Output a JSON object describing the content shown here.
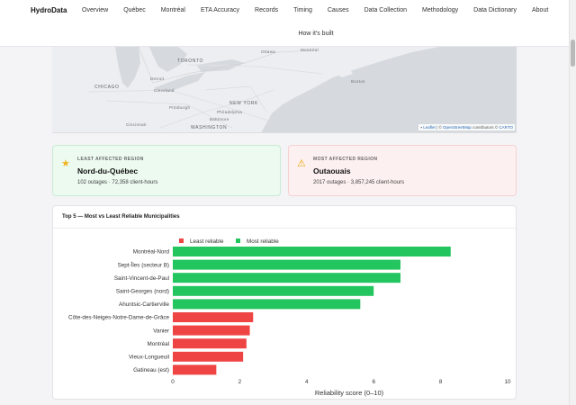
{
  "nav": {
    "brand": "HydroData",
    "items": [
      "Overview",
      "Québec",
      "Montréal",
      "ETA Accuracy",
      "Records",
      "Timing",
      "Causes",
      "Data Collection",
      "Methodology",
      "Data Dictionary",
      "About",
      "How it's built"
    ]
  },
  "map": {
    "cities": [
      "TORONTO",
      "Ottawa",
      "Montréal",
      "Detroit",
      "Boston",
      "Cleveland",
      "CHICAGO",
      "NEW YORK",
      "Pittsburgh",
      "Philadelphia",
      "WASHINGTON",
      "Cincinnati",
      "Baltimore"
    ],
    "attribution": {
      "leaflet": "Leaflet",
      "sep": " | © ",
      "osm": "OpenStreetMap",
      "contrib": " contributors © ",
      "carto": "CARTO"
    }
  },
  "least": {
    "tag": "LEAST AFFECTED REGION",
    "region": "Nord-du-Québec",
    "meta": "102 outages · 72,358 client-hours",
    "icon": "star-icon"
  },
  "most": {
    "tag": "MOST AFFECTED REGION",
    "region": "Outaouais",
    "meta": "2017 outages · 3,857,245 client-hours",
    "icon": "warning-icon"
  },
  "chart": {
    "title": "Top 5 — Most vs Least Reliable Municipalities"
  },
  "chart_data": {
    "type": "bar",
    "orientation": "horizontal",
    "categories": [
      "Montréal-Nord",
      "Sept-Îles (secteur B)",
      "Saint-Vincent-de-Paul",
      "Saint-Georges (nord)",
      "Ahuntsic-Cartierville",
      "Côte-des-Neiges-Notre-Dame-de-Grâce",
      "Vanier",
      "Montréal",
      "Vieux-Longueuil",
      "Gatineau (est)"
    ],
    "values": [
      8.3,
      6.8,
      6.8,
      6.0,
      5.6,
      2.4,
      2.3,
      2.2,
      2.1,
      1.3
    ],
    "groups": [
      "Most reliable",
      "Most reliable",
      "Most reliable",
      "Most reliable",
      "Most reliable",
      "Least reliable",
      "Least reliable",
      "Least reliable",
      "Least reliable",
      "Least reliable"
    ],
    "legend": [
      {
        "name": "Least reliable",
        "color": "#ef4444"
      },
      {
        "name": "Most reliable",
        "color": "#22c55e"
      }
    ],
    "legend_position": "top",
    "xlabel": "Reliability score (0–10)",
    "xlim": [
      0,
      10
    ],
    "xticks": [
      0,
      2,
      4,
      6,
      8,
      10
    ],
    "grid": false
  }
}
